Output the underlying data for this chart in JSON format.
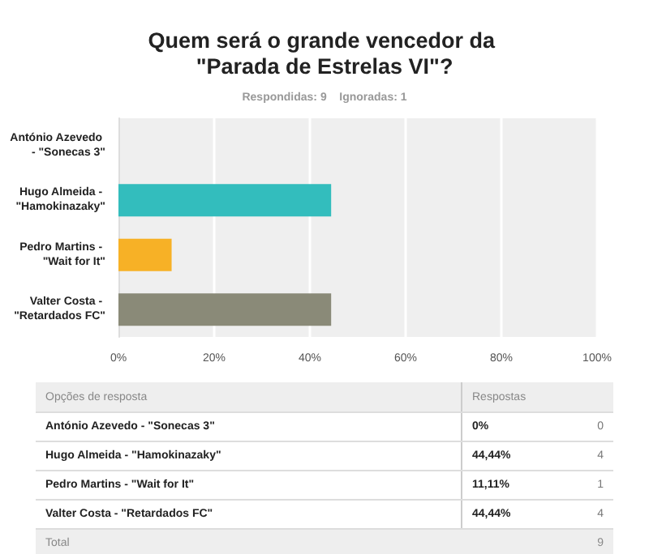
{
  "chart_data": {
    "type": "bar",
    "orientation": "horizontal",
    "title": "Quem será o grande vencedor da \"Parada de Estrelas VI\"?",
    "subtitle": "Respondidas: 9    Ignoradas: 1",
    "categories": [
      "António Azevedo - \"Sonecas 3\"",
      "Hugo Almeida - \"Hamokinazaky\"",
      "Pedro Martins - \"Wait for It\"",
      "Valter Costa - \"Retardados FC\""
    ],
    "values": [
      0,
      44.44,
      11.11,
      44.44
    ],
    "colors": [
      "#33bdbd",
      "#33bdbd",
      "#f7b126",
      "#8a8a78"
    ],
    "xlim": [
      0,
      100
    ],
    "xticks": [
      {
        "value": 0,
        "label": "0%"
      },
      {
        "value": 20,
        "label": "20%"
      },
      {
        "value": 40,
        "label": "40%"
      },
      {
        "value": 60,
        "label": "60%"
      },
      {
        "value": 80,
        "label": "80%"
      },
      {
        "value": 100,
        "label": "100%"
      }
    ],
    "grid": "x",
    "annotations": [
      "Opções de resposta",
      "Respostas",
      "0%",
      "0",
      "44,44%",
      "4",
      "11,11%",
      "1",
      "44,44%",
      "4",
      "Total",
      "9"
    ]
  }
}
